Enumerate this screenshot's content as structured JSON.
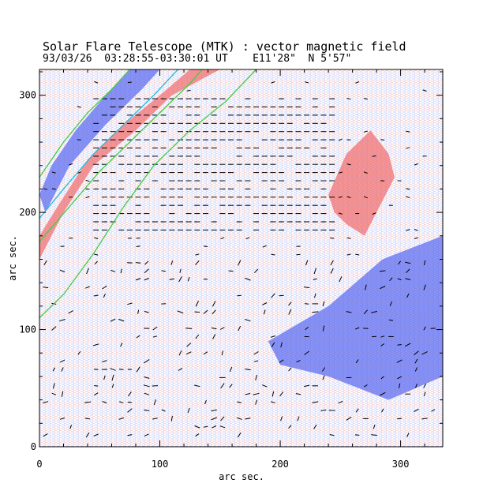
{
  "title_line1": "Solar Flare Telescope (MTK) : vector magnetic field",
  "title_line2": "93/03/26  03:28:55-03:30:01 UT    E11'28\"  N 5'57\"",
  "chart_data": {
    "type": "heatmap",
    "title": "Solar Flare Telescope (MTK) : vector magnetic field",
    "subtitle": "93/03/26  03:28:55-03:30:01 UT    E11'28\"  N 5'57\"",
    "xlabel": "arc sec.",
    "ylabel": "arc sec.",
    "xlim": [
      0,
      335
    ],
    "ylim": [
      0,
      322
    ],
    "x_ticks": [
      0,
      100,
      200,
      300
    ],
    "y_ticks": [
      0,
      100,
      200,
      300
    ],
    "grid": false,
    "legend": "none",
    "colors": {
      "positive_polarity": "#f06060",
      "negative_polarity": "#4a5cf0",
      "neutral_line": "#44cc44",
      "secondary_contour": "#22bbdd",
      "vector": "#000000"
    },
    "regions": [
      {
        "polarity": "positive",
        "points": [
          [
            0,
            160
          ],
          [
            20,
            200
          ],
          [
            45,
            240
          ],
          [
            80,
            270
          ],
          [
            110,
            300
          ],
          [
            150,
            322
          ],
          [
            125,
            322
          ],
          [
            100,
            300
          ],
          [
            70,
            275
          ],
          [
            40,
            245
          ],
          [
            15,
            205
          ],
          [
            0,
            180
          ]
        ]
      },
      {
        "polarity": "negative",
        "points": [
          [
            5,
            200
          ],
          [
            25,
            240
          ],
          [
            55,
            275
          ],
          [
            85,
            305
          ],
          [
            100,
            322
          ],
          [
            75,
            322
          ],
          [
            55,
            300
          ],
          [
            30,
            270
          ],
          [
            10,
            240
          ],
          [
            0,
            215
          ]
        ]
      },
      {
        "polarity": "positive",
        "points": [
          [
            240,
            215
          ],
          [
            255,
            250
          ],
          [
            275,
            270
          ],
          [
            290,
            250
          ],
          [
            295,
            230
          ],
          [
            285,
            210
          ],
          [
            270,
            180
          ],
          [
            255,
            190
          ],
          [
            245,
            200
          ]
        ]
      },
      {
        "polarity": "negative",
        "points": [
          [
            190,
            90
          ],
          [
            240,
            120
          ],
          [
            285,
            160
          ],
          [
            335,
            180
          ],
          [
            335,
            60
          ],
          [
            290,
            40
          ],
          [
            240,
            60
          ],
          [
            200,
            70
          ]
        ]
      }
    ],
    "contours": [
      {
        "kind": "neutral_line",
        "points": [
          [
            0,
            110
          ],
          [
            20,
            130
          ],
          [
            45,
            165
          ],
          [
            70,
            205
          ],
          [
            95,
            240
          ],
          [
            125,
            270
          ],
          [
            155,
            295
          ],
          [
            180,
            322
          ]
        ]
      },
      {
        "kind": "neutral_line",
        "points": [
          [
            0,
            175
          ],
          [
            25,
            205
          ],
          [
            50,
            235
          ],
          [
            75,
            260
          ],
          [
            100,
            285
          ],
          [
            125,
            310
          ],
          [
            135,
            322
          ]
        ]
      },
      {
        "kind": "secondary",
        "points": [
          [
            0,
            195
          ],
          [
            20,
            220
          ],
          [
            45,
            250
          ],
          [
            70,
            275
          ],
          [
            95,
            300
          ],
          [
            115,
            322
          ]
        ]
      },
      {
        "kind": "neutral_line",
        "points": [
          [
            0,
            230
          ],
          [
            20,
            260
          ],
          [
            40,
            285
          ],
          [
            60,
            305
          ],
          [
            75,
            322
          ]
        ]
      }
    ]
  }
}
